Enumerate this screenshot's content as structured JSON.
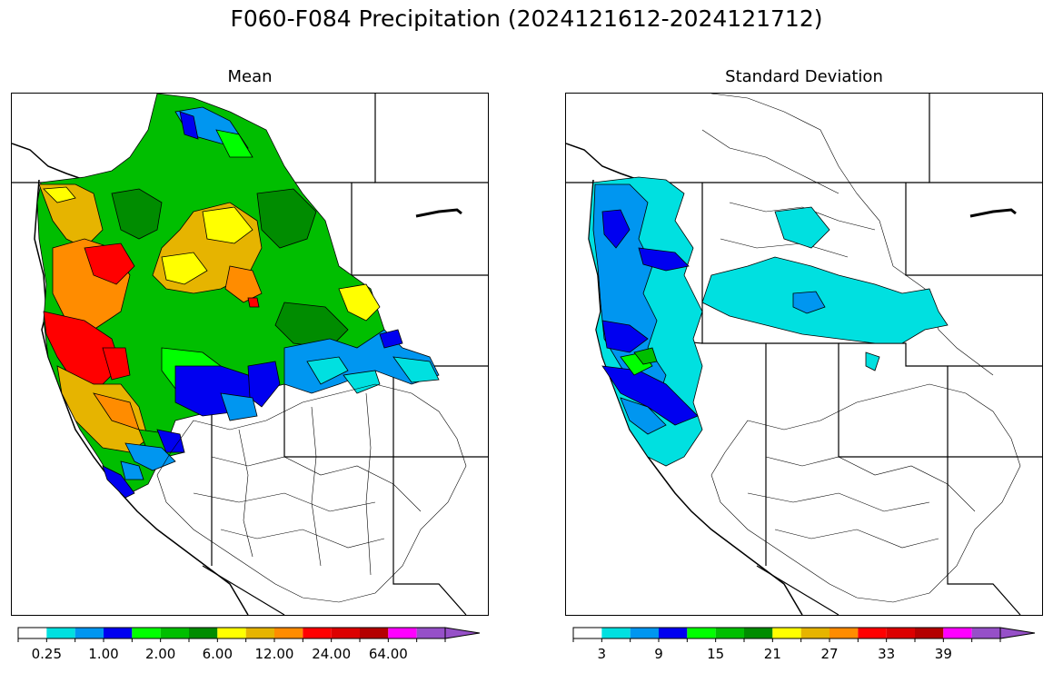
{
  "title": "F060-F084 Precipitation (2024121612-2024121712)",
  "panels": [
    {
      "title": "Mean"
    },
    {
      "title": "Standard Deviation"
    }
  ],
  "colorbar_colors": [
    "#ffffff",
    "#00e0e0",
    "#0096f0",
    "#0000f0",
    "#00ff00",
    "#00be00",
    "#008c00",
    "#ffff00",
    "#e6b400",
    "#ff8c00",
    "#ff0000",
    "#dc0000",
    "#b40000",
    "#ff00ff",
    "#9650c8"
  ],
  "colorbars": [
    {
      "labels": [
        "0.25",
        "1.00",
        "2.00",
        "6.00",
        "12.00",
        "24.00",
        "64.00"
      ]
    },
    {
      "labels": [
        "3",
        "9",
        "15",
        "21",
        "27",
        "33",
        "39"
      ]
    }
  ]
}
